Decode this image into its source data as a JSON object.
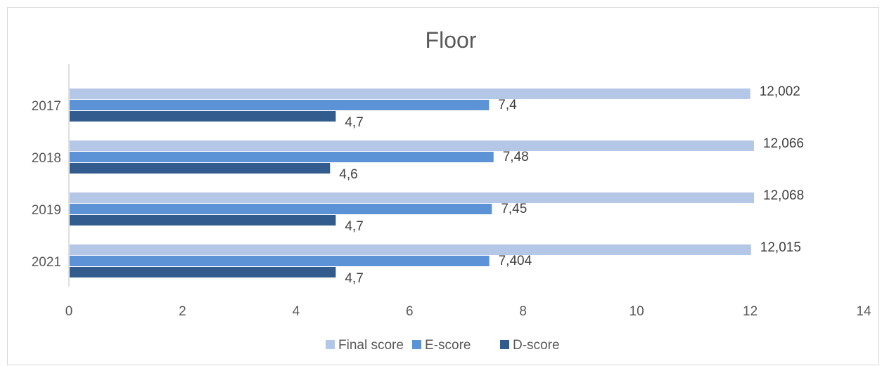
{
  "chart_data": {
    "type": "bar",
    "orientation": "horizontal",
    "title": "Floor",
    "categories": [
      "2017",
      "2018",
      "2019",
      "2021"
    ],
    "series": [
      {
        "name": "Final score",
        "values": [
          12.002,
          12.066,
          12.068,
          12.015
        ],
        "labels": [
          "12,002",
          "12,066",
          "12,068",
          "12,015"
        ],
        "color": "#b4c7e7"
      },
      {
        "name": "E-score",
        "values": [
          7.4,
          7.48,
          7.45,
          7.404
        ],
        "labels": [
          "7,4",
          "7,48",
          "7,45",
          "7,404"
        ],
        "color": "#5b93d6"
      },
      {
        "name": "D-score",
        "values": [
          4.7,
          4.6,
          4.7,
          4.7
        ],
        "labels": [
          "4,7",
          "4,6",
          "4,7",
          "4,7"
        ],
        "color": "#335c8e"
      }
    ],
    "xlim": [
      0,
      14
    ],
    "xticks": [
      "0",
      "2",
      "4",
      "6",
      "8",
      "10",
      "12",
      "14"
    ],
    "grid": false,
    "legend_position": "bottom"
  }
}
